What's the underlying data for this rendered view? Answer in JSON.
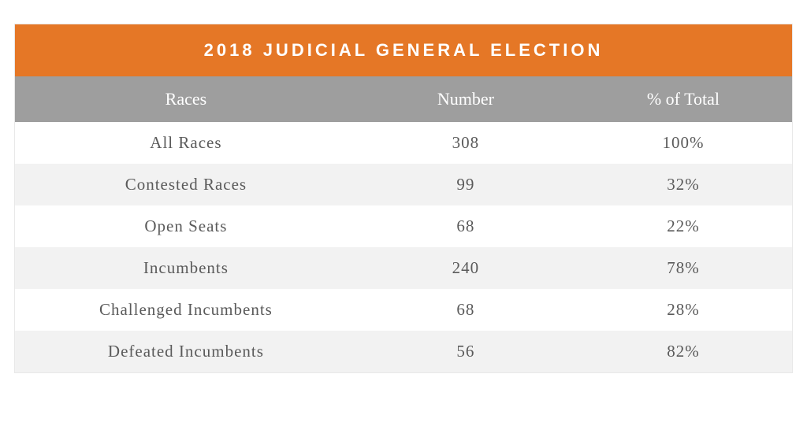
{
  "table": {
    "title": "2018 JUDICIAL GENERAL ELECTION",
    "columns": [
      "Races",
      "Number",
      "% of Total"
    ],
    "rows": [
      {
        "races": "All Races",
        "number": "308",
        "percent": "100%"
      },
      {
        "races": "Contested Races",
        "number": "99",
        "percent": "32%"
      },
      {
        "races": "Open Seats",
        "number": "68",
        "percent": "22%"
      },
      {
        "races": "Incumbents",
        "number": "240",
        "percent": "78%"
      },
      {
        "races": "Challenged Incumbents",
        "number": "68",
        "percent": "28%"
      },
      {
        "races": "Defeated Incumbents",
        "number": "56",
        "percent": "82%"
      }
    ],
    "styling": {
      "title_bg": "#e57726",
      "title_color": "#ffffff",
      "title_fontsize": 22,
      "title_letter_spacing": 4,
      "header_bg": "#9e9e9e",
      "header_color": "#ffffff",
      "header_fontsize": 22,
      "row_even_bg": "#f2f2f2",
      "row_odd_bg": "#ffffff",
      "row_text_color": "#5a5a5a",
      "row_fontsize": 21,
      "border_color": "#e8e8e8",
      "col_widths_pct": [
        44,
        28,
        28
      ]
    }
  }
}
